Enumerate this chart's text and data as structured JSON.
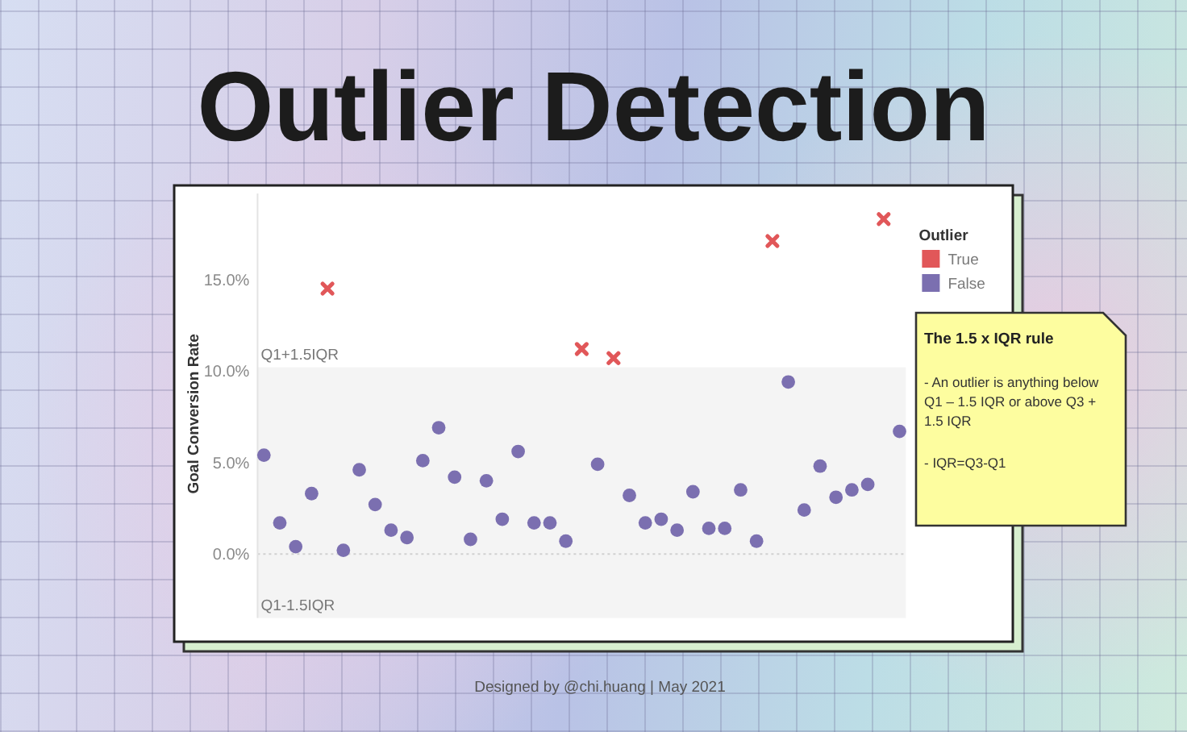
{
  "chart_data": {
    "type": "scatter",
    "title": "Outlier Detection",
    "ylabel": "Goal Conversion Rate",
    "legend_title": "Outlier",
    "legend": "top right",
    "tick_labels": "y",
    "categories": [
      null,
      null,
      null,
      null,
      null,
      null,
      null,
      null,
      null,
      null,
      null,
      null,
      null,
      null,
      null,
      null,
      null,
      null,
      null,
      null,
      null,
      null,
      null,
      null,
      null,
      null,
      null,
      null,
      null,
      null,
      null,
      null,
      null,
      null,
      null,
      null,
      null,
      null,
      null,
      null,
      null
    ],
    "series": [
      {
        "name": "True",
        "color": "#e15759",
        "marker": "cross",
        "values": [
          null,
          null,
          null,
          null,
          14.5,
          null,
          null,
          null,
          null,
          null,
          null,
          null,
          null,
          null,
          null,
          null,
          null,
          null,
          null,
          null,
          11.2,
          null,
          10.7,
          null,
          null,
          null,
          null,
          null,
          null,
          null,
          null,
          null,
          17.1,
          null,
          null,
          null,
          null,
          null,
          null,
          18.3,
          null
        ]
      },
      {
        "name": "False",
        "color": "#7b6fb0",
        "marker": "circle",
        "values": [
          5.4,
          1.7,
          0.4,
          3.3,
          null,
          0.2,
          4.6,
          2.7,
          1.3,
          0.9,
          5.1,
          6.9,
          4.2,
          0.8,
          4.0,
          1.9,
          5.6,
          1.7,
          1.7,
          0.7,
          null,
          4.9,
          null,
          3.2,
          1.7,
          1.9,
          1.3,
          3.4,
          1.4,
          1.4,
          3.5,
          0.7,
          null,
          9.4,
          2.4,
          4.8,
          3.1,
          3.5,
          3.8,
          null,
          6.7
        ]
      }
    ],
    "ylim": [
      -3.5,
      19.7
    ],
    "yticks": [
      {
        "value": 0,
        "label": "0.0%"
      },
      {
        "value": 5,
        "label": "5.0%"
      },
      {
        "value": 10,
        "label": "10.0%"
      },
      {
        "value": 15,
        "label": "15.0%"
      }
    ],
    "bands": [
      {
        "axis": "y",
        "from": -3.5,
        "to": 10.2,
        "color": "#f4f4f4"
      }
    ],
    "ref_lines": [
      {
        "axis": "y",
        "value": 0,
        "color": "#cfcfcf",
        "line_style": "dotted"
      }
    ],
    "annotations": [
      {
        "text": "Q1+1.5IQR",
        "y": 10.2
      },
      {
        "text": "Q1-1.5IQR",
        "y": -3.5
      },
      "The 1.5 x IQR rule",
      "- An outlier is anything below Q1 – 1.5 IQR or above Q3 + 1.5 IQR",
      "- IQR=Q3-Q1",
      "Designed by @chi.huang | May 2021"
    ]
  }
}
